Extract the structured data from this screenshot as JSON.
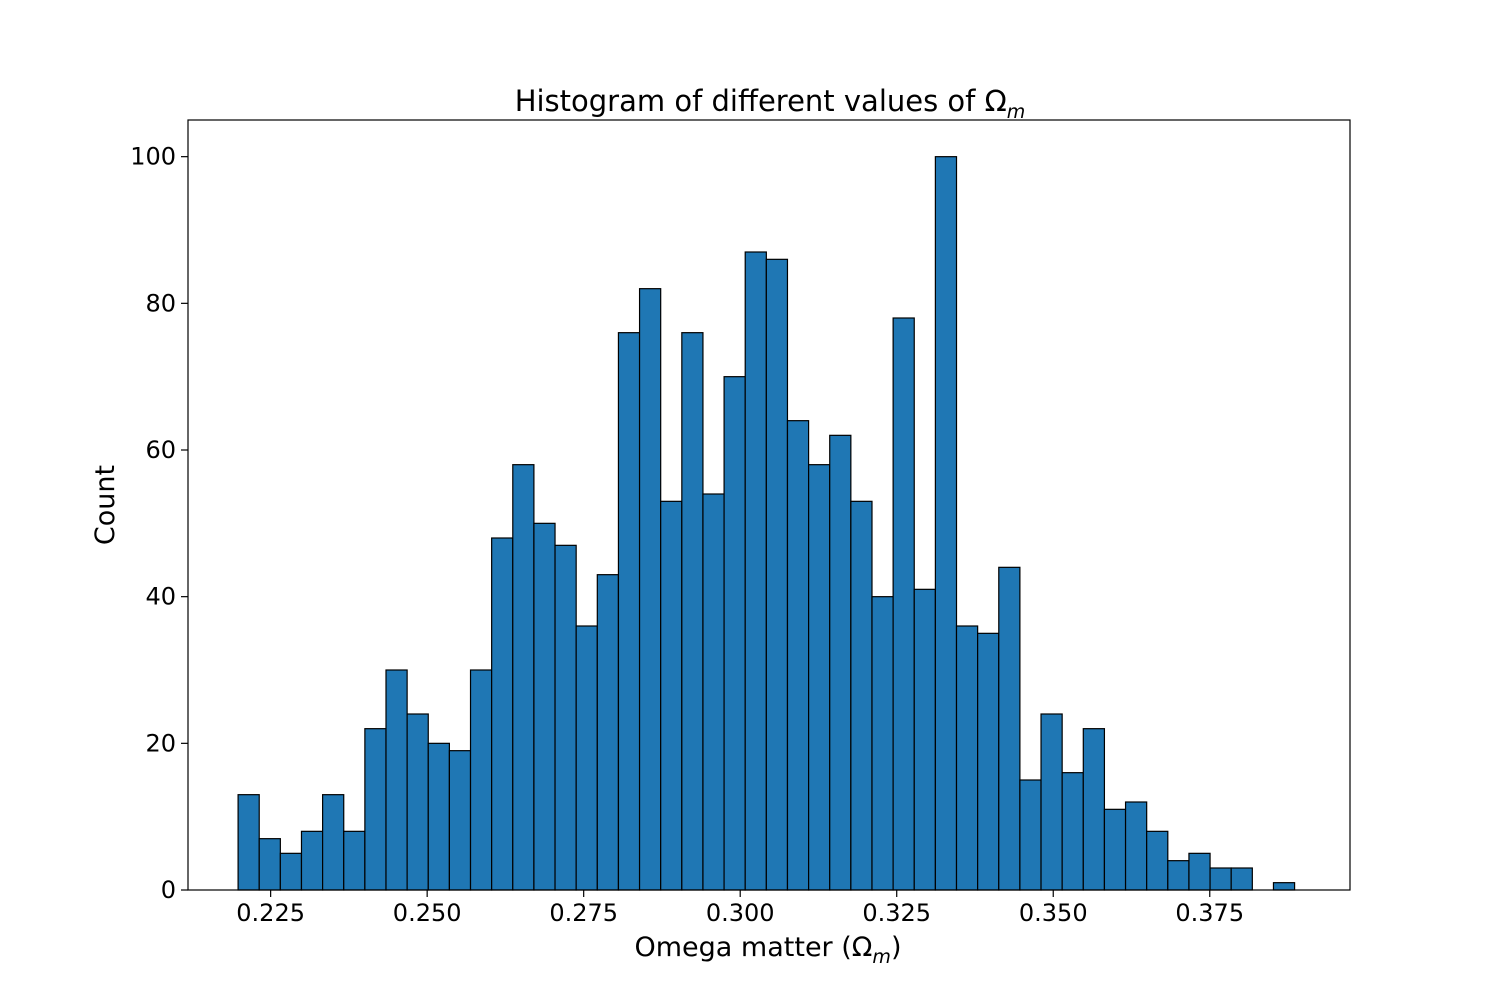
{
  "chart_data": {
    "type": "bar",
    "title": "Histogram of different values of Ω",
    "title_subscript": "m",
    "xlabel": "Omega matter (Ω",
    "xlabel_subscript": "m",
    "xlabel_suffix": ")",
    "ylabel": "Count",
    "xlim": [
      0.2118,
      0.3974
    ],
    "ylim": [
      0,
      105
    ],
    "xticks": [
      0.225,
      0.25,
      0.275,
      0.3,
      0.325,
      0.35,
      0.375
    ],
    "xtick_labels": [
      "0.225",
      "0.250",
      "0.275",
      "0.300",
      "0.325",
      "0.350",
      "0.375"
    ],
    "yticks": [
      0,
      20,
      40,
      60,
      80,
      100
    ],
    "ytick_labels": [
      "0",
      "20",
      "40",
      "60",
      "80",
      "100"
    ],
    "bin_start": 0.2198,
    "bin_width": 0.003375,
    "values": [
      13,
      7,
      5,
      8,
      13,
      8,
      22,
      30,
      24,
      20,
      19,
      30,
      48,
      58,
      50,
      47,
      36,
      43,
      76,
      82,
      53,
      76,
      54,
      70,
      87,
      86,
      64,
      58,
      62,
      53,
      40,
      78,
      41,
      100,
      36,
      35,
      44,
      15,
      24,
      16,
      22,
      11,
      12,
      8,
      4,
      5,
      3,
      3,
      0,
      1
    ],
    "bar_color": "#1f77b4",
    "edge_color": "#000000",
    "grid": false,
    "legend": "none"
  }
}
